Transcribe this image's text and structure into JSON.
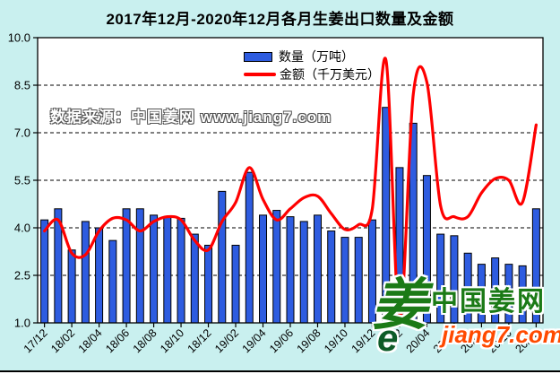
{
  "title": "2017年12月-2020年12月各月生姜出口数量及金额",
  "watermark": "数据来源：中国姜网 www.jiang7.com",
  "legend": {
    "quantity_label": "数量（万吨）",
    "amount_label": "金额（千万美元）"
  },
  "logo": {
    "ginger_glyph": "姜",
    "swirl_glyph": "e",
    "site_name": "中国姜网",
    "site_url": "jiang7.com"
  },
  "colors": {
    "background": "#c9f0ef",
    "plot_background": "#ffffff",
    "bar_fill": "#2e5ce0",
    "bar_border": "#000000",
    "line": "#ff0000",
    "grid": "#000000",
    "axis_text": "#000000",
    "logo_green": "#1b7a16",
    "logo_orange": "#ff4a00"
  },
  "chart_data": {
    "type": "bar",
    "combo": "bar+line",
    "title": "2017年12月-2020年12月各月生姜出口数量及金额",
    "categories": [
      "17/12",
      "18/01",
      "18/02",
      "18/03",
      "18/04",
      "18/05",
      "18/06",
      "18/07",
      "18/08",
      "18/09",
      "18/10",
      "18/11",
      "18/12",
      "19/01",
      "19/02",
      "19/03",
      "19/04",
      "19/05",
      "19/06",
      "19/07",
      "19/08",
      "19/09",
      "19/10",
      "19/11",
      "19/12",
      "20/01",
      "20/02",
      "20/03",
      "20/04",
      "20/05",
      "20/06",
      "20/07",
      "20/08",
      "20/09",
      "20/10",
      "20/11",
      "20/12"
    ],
    "x_tick_labels": [
      "17/12",
      "18/02",
      "18/04",
      "18/06",
      "18/08",
      "18/10",
      "18/12",
      "19/02",
      "19/04",
      "19/06",
      "19/08",
      "19/10",
      "19/12",
      "20/02",
      "20/04",
      "20/06",
      "20/08",
      "20/10",
      "20/12"
    ],
    "series": [
      {
        "name": "数量（万吨）",
        "type": "bar",
        "values": [
          4.25,
          4.6,
          3.3,
          4.2,
          4.0,
          3.6,
          4.6,
          4.6,
          4.4,
          4.35,
          4.3,
          3.8,
          3.45,
          5.15,
          3.45,
          5.75,
          4.4,
          4.55,
          4.35,
          4.2,
          4.4,
          3.9,
          3.7,
          3.7,
          4.25,
          7.8,
          5.9,
          7.3,
          5.65,
          3.8,
          3.75,
          3.2,
          2.85,
          3.05,
          2.85,
          2.8,
          4.6
        ]
      },
      {
        "name": "金额（千万美元）",
        "type": "line",
        "values": [
          3.9,
          4.25,
          3.2,
          3.15,
          3.9,
          4.3,
          4.25,
          3.9,
          4.2,
          4.35,
          4.25,
          3.6,
          3.3,
          4.2,
          4.8,
          5.9,
          4.9,
          4.25,
          4.6,
          4.95,
          5.0,
          4.45,
          3.95,
          4.1,
          4.6,
          9.3,
          1.1,
          8.2,
          8.6,
          4.7,
          4.35,
          4.35,
          5.1,
          5.55,
          5.5,
          4.8,
          7.25
        ]
      }
    ],
    "ylim": [
      1.0,
      10.0
    ],
    "y_ticks": [
      1.0,
      2.5,
      4.0,
      5.5,
      7.0,
      8.5,
      10.0
    ],
    "grid": "horizontal dashed",
    "legend_position": "top-center inside plot",
    "xlabel": "",
    "ylabel": ""
  }
}
